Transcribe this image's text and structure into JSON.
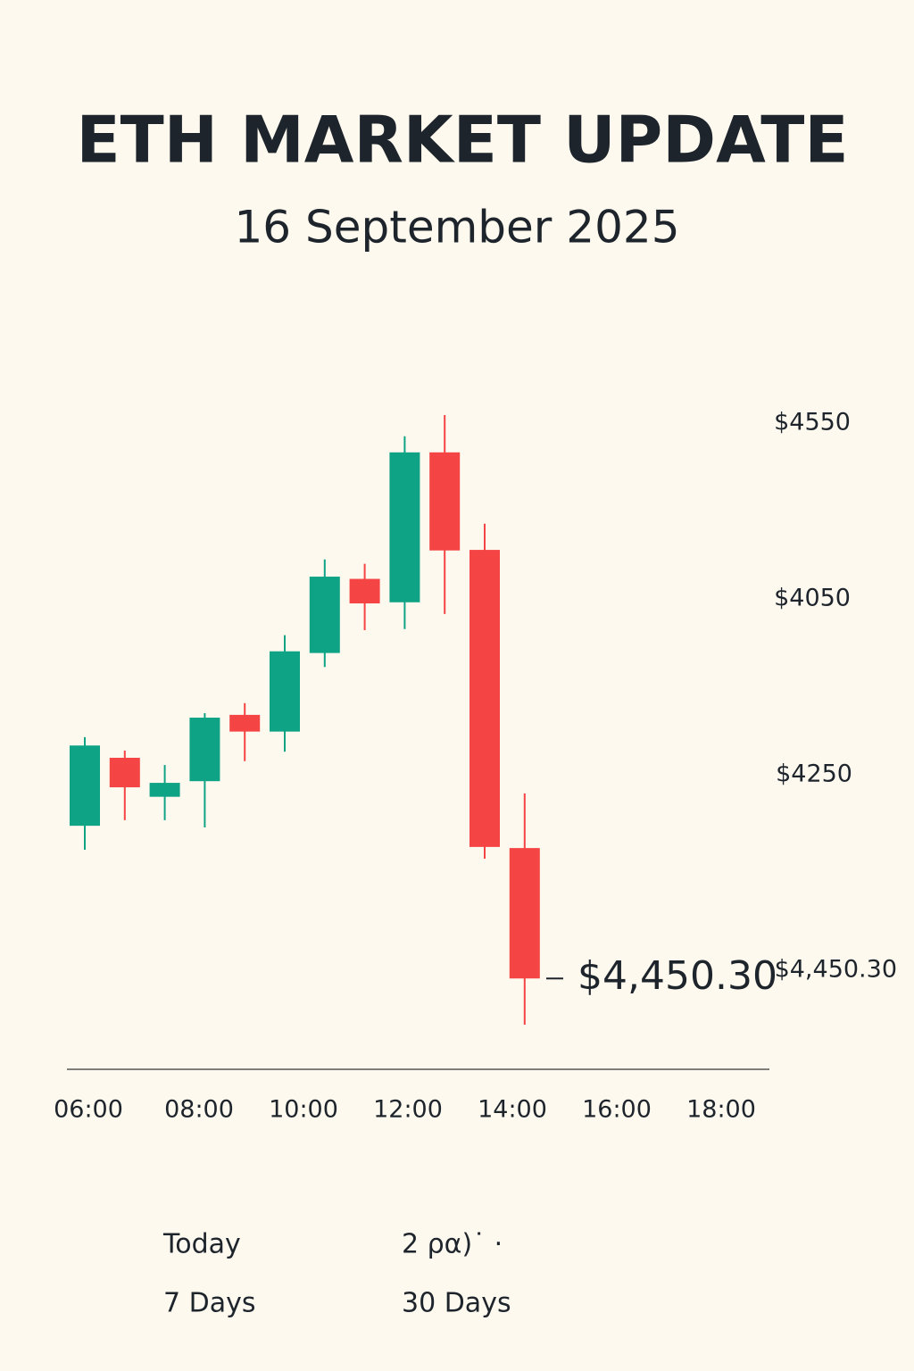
{
  "header": {
    "title": "ETH MARKET UPDATE",
    "date": "16 September 2025"
  },
  "chart_data": {
    "type": "candlestick",
    "ylim": [
      4434,
      4555.4
    ],
    "up_color": "#0fa386",
    "down_color": "#f44444",
    "candles": [
      {
        "open": 4477.7,
        "high": 4493.6,
        "low": 4473.4,
        "close": 4492.1
      },
      {
        "open": 4489.9,
        "high": 4491.2,
        "low": 4478.7,
        "close": 4484.6
      },
      {
        "open": 4482.9,
        "high": 4488.6,
        "low": 4478.7,
        "close": 4485.4
      },
      {
        "open": 4485.7,
        "high": 4497.9,
        "low": 4477.4,
        "close": 4497.1
      },
      {
        "open": 4497.6,
        "high": 4499.7,
        "low": 4489.3,
        "close": 4494.6
      },
      {
        "open": 4494.6,
        "high": 4511.9,
        "low": 4491.0,
        "close": 4509.0
      },
      {
        "open": 4508.7,
        "high": 4525.5,
        "low": 4506.2,
        "close": 4522.4
      },
      {
        "open": 4522.0,
        "high": 4524.7,
        "low": 4512.8,
        "close": 4517.6
      },
      {
        "open": 4517.8,
        "high": 4547.6,
        "low": 4513.0,
        "close": 4544.7
      },
      {
        "open": 4544.7,
        "high": 4551.4,
        "low": 4515.7,
        "close": 4527.1
      },
      {
        "open": 4527.2,
        "high": 4531.9,
        "low": 4471.8,
        "close": 4473.9
      },
      {
        "open": 4473.7,
        "high": 4483.5,
        "low": 4442.0,
        "close": 4450.3
      }
    ],
    "current_price": {
      "value": 4450.3,
      "label": "$4,450.30"
    },
    "axis_labels": [
      "$4550",
      "$4050",
      "$4250",
      "$4,450.30"
    ],
    "time_labels": [
      "06:00",
      "08:00",
      "10:00",
      "12:00",
      "14:00",
      "16:00",
      "18:00"
    ]
  },
  "range_buttons": [
    "Today",
    "2 ρα)˙ ·",
    "7 Days",
    "30 Days"
  ]
}
